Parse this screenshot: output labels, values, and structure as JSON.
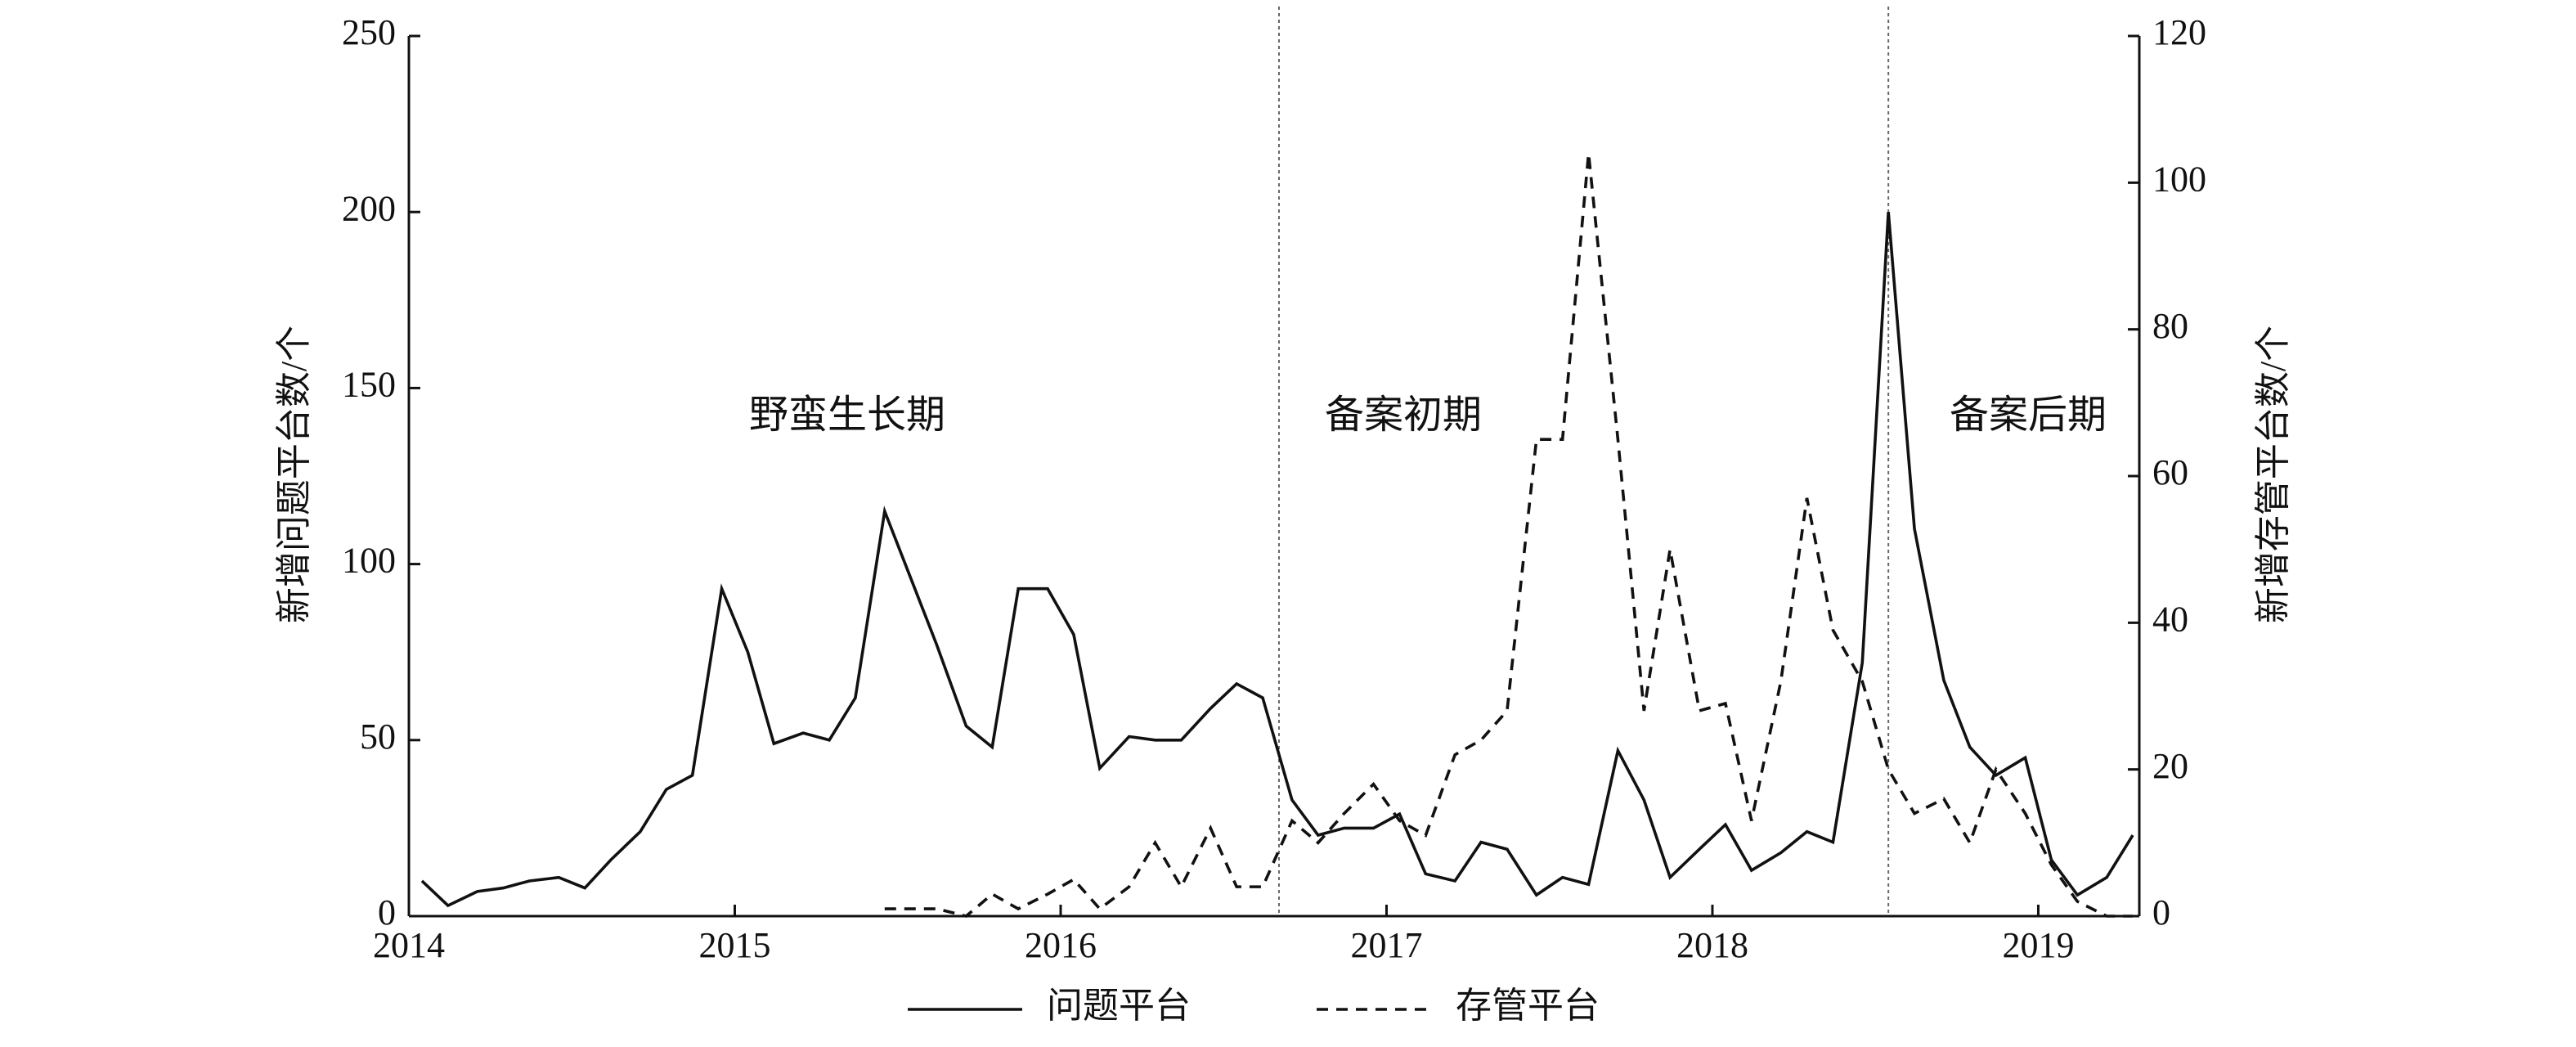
{
  "chart_data": {
    "type": "line",
    "y_label": "新增问题平台数/个",
    "y2_label": "新增存管平台数/个",
    "annotations": [
      "野蛮生长期",
      "备案初期",
      "备案后期"
    ],
    "phase_lines": [
      2016.67,
      2018.54
    ],
    "x": [
      2014.04,
      2014.12,
      2014.21,
      2014.29,
      2014.37,
      2014.46,
      2014.54,
      2014.62,
      2014.71,
      2014.79,
      2014.87,
      2014.96,
      2015.04,
      2015.12,
      2015.21,
      2015.29,
      2015.37,
      2015.46,
      2015.54,
      2015.62,
      2015.71,
      2015.79,
      2015.87,
      2015.96,
      2016.04,
      2016.12,
      2016.21,
      2016.29,
      2016.37,
      2016.46,
      2016.54,
      2016.62,
      2016.71,
      2016.79,
      2016.87,
      2016.96,
      2017.04,
      2017.12,
      2017.21,
      2017.29,
      2017.37,
      2017.46,
      2017.54,
      2017.62,
      2017.71,
      2017.79,
      2017.87,
      2017.96,
      2018.04,
      2018.12,
      2018.21,
      2018.29,
      2018.37,
      2018.46,
      2018.54,
      2018.62,
      2018.71,
      2018.79,
      2018.87,
      2018.96,
      2019.04,
      2019.12,
      2019.21,
      2019.29
    ],
    "series": [
      {
        "name": "问题平台",
        "color": "#111111",
        "dash": "none",
        "axis": "y",
        "values": [
          10,
          3,
          7,
          8,
          10,
          11,
          8,
          16,
          24,
          36,
          40,
          93,
          75,
          49,
          52,
          50,
          62,
          115,
          96,
          77,
          54,
          48,
          93,
          93,
          80,
          42,
          51,
          50,
          50,
          59,
          66,
          62,
          33,
          23,
          25,
          25,
          29,
          12,
          10,
          21,
          19,
          6,
          11,
          9,
          47,
          33,
          11,
          19,
          26,
          13,
          18,
          24,
          21,
          72,
          200,
          110,
          67,
          48,
          40,
          45,
          16,
          6,
          11,
          23
        ]
      },
      {
        "name": "存管平台",
        "color": "#111111",
        "dash": "7 5",
        "axis": "y2",
        "values": [
          null,
          null,
          null,
          null,
          null,
          null,
          null,
          null,
          null,
          null,
          null,
          null,
          null,
          null,
          null,
          null,
          null,
          1,
          1,
          1,
          0,
          3,
          1,
          3,
          5,
          1,
          4,
          10,
          4,
          12,
          4,
          4,
          13,
          10,
          14,
          18,
          13,
          11,
          22,
          24,
          28,
          65,
          65,
          104,
          65,
          28,
          50,
          28,
          29,
          13,
          32,
          57,
          39,
          32,
          20,
          14,
          16,
          10,
          20,
          14,
          7,
          2,
          0,
          0
        ]
      }
    ],
    "xlim": [
      2014,
      2019.31
    ],
    "xticks": [
      2014,
      2015,
      2016,
      2017,
      2018,
      2019
    ],
    "ylim": [
      0,
      250
    ],
    "yticks": [
      0,
      50,
      100,
      150,
      200,
      250
    ],
    "y2lim": [
      0,
      120
    ],
    "y2ticks": [
      0,
      20,
      40,
      60,
      80,
      100,
      120
    ]
  }
}
